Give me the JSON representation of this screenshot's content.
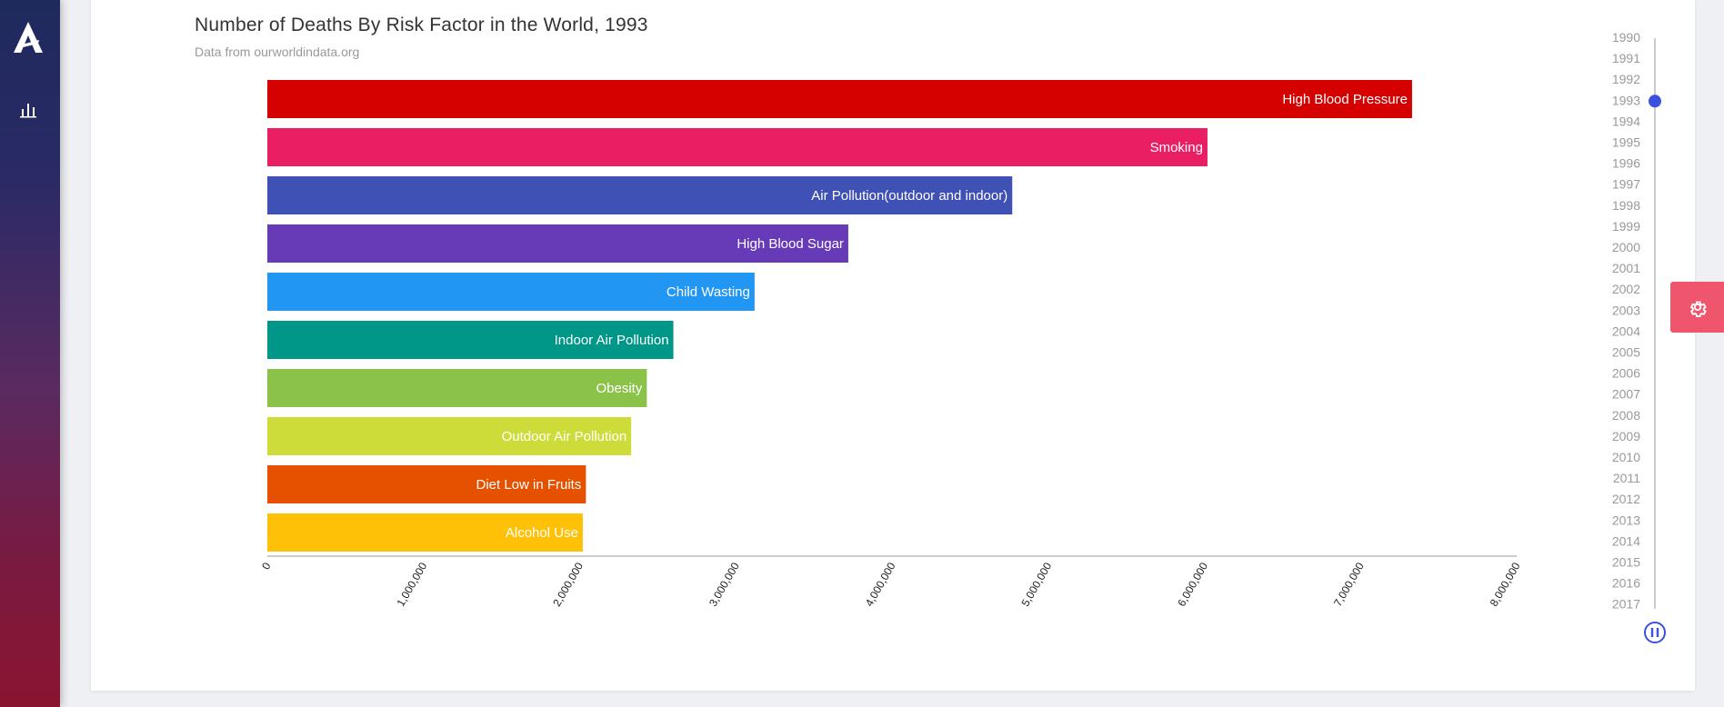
{
  "header": {
    "title": "Number of Deaths By Risk Factor in the World, 1993",
    "subtitle": "Data from ourworldindata.org"
  },
  "icons": {
    "logo": "app-logo-icon",
    "nav": "bar-chart-icon",
    "settings": "gear-icon",
    "play": "pause-icon"
  },
  "colors": {
    "timeline_track": "#cccccc",
    "timeline_handle": "#3b4fe0",
    "settings_bg": "#f0556e"
  },
  "chart_data": {
    "type": "bar",
    "orientation": "horizontal",
    "categories": [
      "High Blood Pressure",
      "Smoking",
      "Air Pollution(outdoor and indoor)",
      "High Blood Sugar",
      "Child Wasting",
      "Indoor Air Pollution",
      "Obesity",
      "Outdoor Air Pollution",
      "Diet Low in Fruits",
      "Alcohol Use"
    ],
    "values": [
      7330000,
      6020000,
      4770000,
      3720000,
      3120000,
      2600000,
      2430000,
      2330000,
      2040000,
      2020000
    ],
    "colors": [
      "#d50000",
      "#ea1e63",
      "#3f51b5",
      "#673ab7",
      "#2196f3",
      "#009688",
      "#8bc34a",
      "#cddc39",
      "#e65100",
      "#ffc107"
    ],
    "xlim": [
      0,
      8000000
    ],
    "xticks": [
      0,
      1000000,
      2000000,
      3000000,
      4000000,
      5000000,
      6000000,
      7000000,
      8000000
    ],
    "xtick_labels": [
      "0",
      "1,000,000",
      "2,000,000",
      "3,000,000",
      "4,000,000",
      "5,000,000",
      "6,000,000",
      "7,000,000",
      "8,000,000"
    ],
    "grid": false,
    "legend": "none"
  },
  "timeline": {
    "years": [
      "1990",
      "1991",
      "1992",
      "1993",
      "1994",
      "1995",
      "1996",
      "1997",
      "1998",
      "1999",
      "2000",
      "2001",
      "2002",
      "2003",
      "2004",
      "2005",
      "2006",
      "2007",
      "2008",
      "2009",
      "2010",
      "2011",
      "2012",
      "2013",
      "2014",
      "2015",
      "2016",
      "2017"
    ],
    "current": "1993"
  }
}
